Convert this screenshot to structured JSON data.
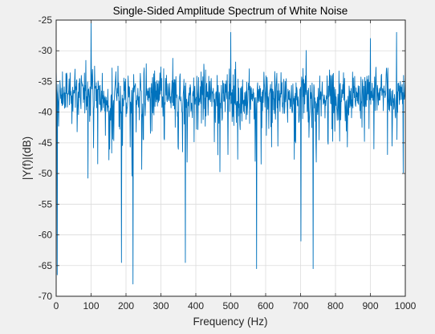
{
  "figure": {
    "background": "#f0f0f0"
  },
  "chart_data": {
    "type": "line",
    "title": "Single-Sided Amplitude Spectrum of White Noise",
    "xlabel": "Frequency (Hz)",
    "ylabel": "|Y(f)|(dB)",
    "xlim": [
      0,
      1000
    ],
    "ylim": [
      -70,
      -25
    ],
    "xticks": [
      0,
      100,
      200,
      300,
      400,
      500,
      600,
      700,
      800,
      900,
      1000
    ],
    "yticks": [
      -70,
      -65,
      -60,
      -55,
      -50,
      -45,
      -40,
      -35,
      -30,
      -25
    ],
    "xtick_labels": [
      "0",
      "100",
      "200",
      "300",
      "400",
      "500",
      "600",
      "700",
      "800",
      "900",
      "1000"
    ],
    "ytick_labels": [
      "-70",
      "-65",
      "-60",
      "-55",
      "-50",
      "-45",
      "-40",
      "-35",
      "-30",
      "-25"
    ],
    "grid": true,
    "legend": "none",
    "series_color": "#0072bd",
    "axes_color": "#262626",
    "grid_color": "#dcdcdc",
    "plot_background": "#ffffff",
    "series": [
      {
        "x": [
          0,
          25,
          50,
          75,
          100,
          125,
          150,
          175,
          200,
          225,
          250,
          275,
          300,
          325,
          350,
          375,
          400,
          425,
          450,
          475,
          500,
          525,
          550,
          575,
          600,
          625,
          650,
          675,
          700,
          725,
          750,
          775,
          800,
          825,
          850,
          875,
          900,
          925,
          950,
          975,
          1000
        ],
        "y": [
          -38,
          -37,
          -36,
          -37,
          -36,
          -37,
          -38,
          -37,
          -37,
          -37,
          -37,
          -37,
          -37,
          -37,
          -37,
          -38,
          -37,
          -37,
          -38,
          -37,
          -37,
          -37,
          -37,
          -38,
          -37,
          -37,
          -37,
          -37,
          -37,
          -37,
          -38,
          -37,
          -37,
          -37,
          -37,
          -37,
          -37,
          -37,
          -37,
          -38,
          -37
        ],
        "peaks": [
          {
            "x": 0,
            "y": -33
          },
          {
            "x": 100,
            "y": -25.5
          },
          {
            "x": 500,
            "y": -27
          },
          {
            "x": 900,
            "y": -28
          },
          {
            "x": 975,
            "y": -27
          }
        ],
        "dips": [
          {
            "x": 3,
            "y": -66.5
          },
          {
            "x": 187,
            "y": -64.5
          },
          {
            "x": 220,
            "y": -68
          },
          {
            "x": 370,
            "y": -64.5
          },
          {
            "x": 574,
            "y": -65.5
          },
          {
            "x": 701,
            "y": -61
          },
          {
            "x": 736,
            "y": -65.5
          }
        ]
      }
    ]
  }
}
